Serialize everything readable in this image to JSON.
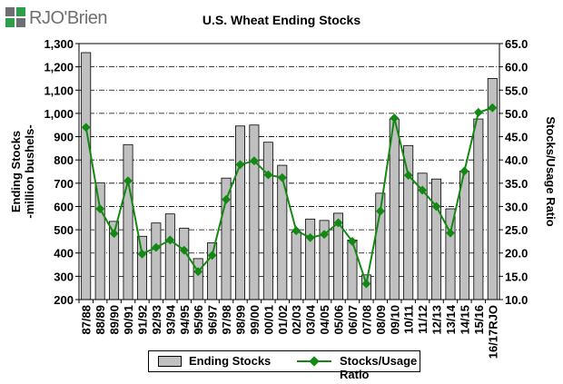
{
  "brand": {
    "name": "RJO'Brien"
  },
  "colors": {
    "bar": "#c0c0c0",
    "line": "#138913",
    "grid": "#000000"
  },
  "chart_data": {
    "type": "bar",
    "title": "U.S. Wheat Ending Stocks",
    "ylabel_left": "Ending Stocks -million bushels-",
    "ylabel_right": "Stocks/Usage Ratio",
    "ylim_left": [
      200,
      1300
    ],
    "ylim_right": [
      10,
      65
    ],
    "yticks_left": [
      "200",
      "300",
      "400",
      "500",
      "600",
      "700",
      "800",
      "900",
      "1,000",
      "1,100",
      "1,200",
      "1,300"
    ],
    "yticks_right": [
      "10.0",
      "15.0",
      "20.0",
      "25.0",
      "30.0",
      "35.0",
      "40.0",
      "45.0",
      "50.0",
      "55.0",
      "60.0",
      "65.0"
    ],
    "grid": true,
    "legend_position": "bottom",
    "categories": [
      "87/88",
      "88/89",
      "89/90",
      "90/91",
      "91/92",
      "92/93",
      "93/94",
      "94/95",
      "95/96",
      "96/97",
      "97/98",
      "98/99",
      "99/00",
      "00/01",
      "01/02",
      "02/03",
      "03/04",
      "04/05",
      "05/06",
      "06/07",
      "07/08",
      "08/09",
      "09/10",
      "10/11",
      "11/12",
      "12/13",
      "13/14",
      "14/15",
      "15/16",
      "16/17RJO"
    ],
    "series": [
      {
        "name": "Ending Stocks",
        "type": "bar",
        "axis": "left",
        "values": [
          1261,
          702,
          536,
          866,
          472,
          529,
          568,
          507,
          376,
          444,
          722,
          946,
          950,
          876,
          777,
          491,
          546,
          540,
          571,
          456,
          306,
          657,
          976,
          862,
          743,
          718,
          590,
          752,
          976,
          1150
        ]
      },
      {
        "name": "Stocks/Usage Ratio",
        "type": "line",
        "axis": "right",
        "values": [
          47.0,
          29.5,
          24.2,
          35.5,
          19.8,
          21.2,
          22.8,
          20.6,
          16.0,
          19.5,
          31.5,
          39.0,
          39.8,
          36.8,
          36.2,
          24.8,
          23.3,
          24.0,
          26.5,
          22.5,
          13.4,
          29.0,
          49.0,
          36.7,
          33.5,
          30.0,
          24.3,
          37.6,
          50.2,
          51.2
        ]
      }
    ]
  }
}
